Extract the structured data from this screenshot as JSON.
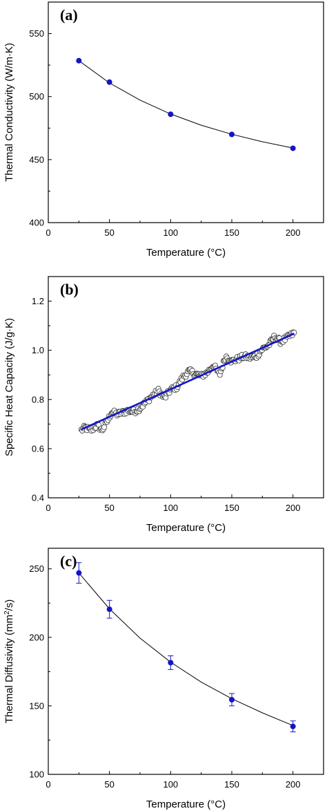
{
  "chart_data": [
    {
      "type": "scatter",
      "panel_label": "(a)",
      "xlabel": "Temperature (°C)",
      "ylabel": "Thermal Conductivity (W/m·K)",
      "xlim": [
        0,
        225
      ],
      "ylim": [
        400,
        575
      ],
      "xticks": [
        0,
        50,
        100,
        150,
        200
      ],
      "yticks": [
        400,
        450,
        500,
        550
      ],
      "marker_color": "#1414c8",
      "line_color": "#000000",
      "grid": false,
      "points": {
        "x": [
          25,
          50,
          100,
          150,
          200
        ],
        "y": [
          528.5,
          511.5,
          486,
          470,
          459
        ]
      },
      "fit_curve": {
        "x": [
          25,
          50,
          75,
          100,
          125,
          150,
          175,
          200
        ],
        "y": [
          528.5,
          510.8,
          497.2,
          486.2,
          477.3,
          470.1,
          464.2,
          459.2
        ]
      }
    },
    {
      "type": "scatter",
      "panel_label": "(b)",
      "xlabel": "Temperature (°C)",
      "ylabel": "Specific Heat Capacity (J/g·K)",
      "xlim": [
        0,
        225
      ],
      "ylim": [
        0.4,
        1.3
      ],
      "xticks": [
        0,
        50,
        100,
        150,
        200
      ],
      "yticks": [
        0.4,
        0.6,
        0.8,
        1.0,
        1.2
      ],
      "ytick_labels": [
        "0.4",
        "0.6",
        "0.8",
        "1.0",
        "1.2"
      ],
      "marker_style": "open-circle",
      "line_color": "#1414c8",
      "grid": false,
      "x_range": [
        27,
        201
      ],
      "anchors": {
        "x": [
          27,
          30,
          35,
          40,
          44,
          48,
          52,
          56,
          60,
          65,
          70,
          75,
          80,
          85,
          90,
          95,
          100,
          105,
          110,
          115,
          120,
          125,
          130,
          135,
          140,
          145,
          150,
          155,
          160,
          165,
          170,
          175,
          180,
          185,
          190,
          195,
          201
        ],
        "y": [
          0.675,
          0.685,
          0.675,
          0.695,
          0.675,
          0.71,
          0.75,
          0.74,
          0.745,
          0.755,
          0.75,
          0.765,
          0.79,
          0.815,
          0.835,
          0.805,
          0.84,
          0.85,
          0.89,
          0.915,
          0.905,
          0.895,
          0.91,
          0.94,
          0.9,
          0.975,
          0.955,
          0.965,
          0.975,
          0.97,
          0.975,
          1.005,
          1.02,
          1.055,
          1.035,
          1.05,
          1.07
        ]
      },
      "fit_line": {
        "x": [
          27,
          201
        ],
        "y": [
          0.678,
          1.068
        ]
      }
    },
    {
      "type": "scatter",
      "panel_label": "(c)",
      "xlabel": "Temperature (°C)",
      "ylabel": "Thermal Diffusivity (mm²/s)",
      "ylabel_main": "Thermal Diffusivity (mm",
      "ylabel_sup": "2",
      "ylabel_tail": "/s)",
      "xlim": [
        0,
        225
      ],
      "ylim": [
        100,
        265
      ],
      "xticks": [
        0,
        50,
        100,
        150,
        200
      ],
      "yticks": [
        100,
        150,
        200,
        250
      ],
      "marker_color": "#1414c8",
      "line_color": "#000000",
      "grid": false,
      "points": {
        "x": [
          25,
          50,
          100,
          150,
          200
        ],
        "y": [
          247,
          220.5,
          181.5,
          154.5,
          135
        ],
        "err": [
          7.5,
          6.5,
          5,
          4.5,
          4
        ]
      },
      "fit_curve": {
        "x": [
          25,
          50,
          75,
          100,
          125,
          150,
          175,
          200
        ],
        "y": [
          247,
          220.8,
          199.4,
          181.9,
          167.3,
          155.2,
          144.9,
          135.6
        ]
      }
    }
  ]
}
